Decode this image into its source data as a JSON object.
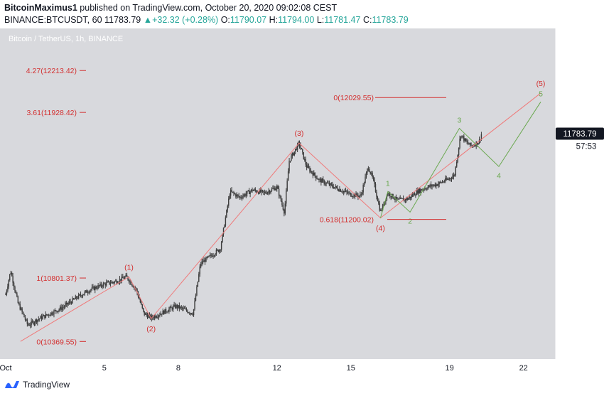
{
  "header": {
    "author": "BitcoinMaximus1",
    "published": "published on TradingView.com, October 20, 2020 09:02:08 CEST",
    "symbol": "BINANCE:BTCUSDT, 60",
    "last": "11783.79",
    "change_arrow": "▲",
    "change": "+32.32 (+0.28%)",
    "o_label": "O:",
    "o_value": "11790.07",
    "h_label": "H:",
    "h_value": "11794.00",
    "l_label": "L:",
    "l_value": "11781.47",
    "c_label": "C:",
    "c_value": "11783.79"
  },
  "footer": {
    "brand": "TradingView",
    "logo_icon": "tradingview-logo-icon"
  },
  "colors": {
    "plot_bg": "#d8d9dd",
    "candle": "#3c3c3c",
    "fib": "#d32f2f",
    "wave_red": "#ef7b7b",
    "wave_green": "#6aa84f",
    "last_price_bg": "#131722"
  },
  "chart_data": {
    "type": "candlestick",
    "title": "Bitcoin / TetherUS, 1h, BINANCE",
    "y_unit": "USDT",
    "ylim": [
      10250,
      12500
    ],
    "y_ticks": [
      "10400.00",
      "10600.00",
      "10800.00",
      "11000.00",
      "11200.00",
      "11400.00",
      "11600.00",
      "11800.00",
      "12000.00",
      "12200.00"
    ],
    "x_ticks": [
      {
        "label": "Oct",
        "day": 1
      },
      {
        "label": "5",
        "day": 5
      },
      {
        "label": "8",
        "day": 8
      },
      {
        "label": "12",
        "day": 12
      },
      {
        "label": "15",
        "day": 15
      },
      {
        "label": "19",
        "day": 19
      },
      {
        "label": "22",
        "day": 22
      }
    ],
    "x_range_days": [
      1,
      23
    ],
    "last_price": "11783.79",
    "countdown": "57:53",
    "price_anchors": [
      [
        1.0,
        10690
      ],
      [
        1.2,
        10850
      ],
      [
        1.5,
        10630
      ],
      [
        1.9,
        10480
      ],
      [
        2.3,
        10520
      ],
      [
        2.8,
        10560
      ],
      [
        3.3,
        10600
      ],
      [
        3.9,
        10670
      ],
      [
        4.4,
        10720
      ],
      [
        5.0,
        10760
      ],
      [
        5.5,
        10780
      ],
      [
        5.9,
        10810
      ],
      [
        6.3,
        10720
      ],
      [
        6.6,
        10560
      ],
      [
        6.9,
        10530
      ],
      [
        7.4,
        10570
      ],
      [
        7.9,
        10610
      ],
      [
        8.2,
        10590
      ],
      [
        8.6,
        10560
      ],
      [
        8.9,
        10900
      ],
      [
        9.3,
        10950
      ],
      [
        9.7,
        11000
      ],
      [
        10.1,
        11390
      ],
      [
        10.5,
        11350
      ],
      [
        11.0,
        11400
      ],
      [
        11.5,
        11380
      ],
      [
        12.0,
        11420
      ],
      [
        12.3,
        11250
      ],
      [
        12.5,
        11600
      ],
      [
        12.9,
        11720
      ],
      [
        13.2,
        11560
      ],
      [
        13.7,
        11470
      ],
      [
        14.2,
        11430
      ],
      [
        14.6,
        11400
      ],
      [
        15.0,
        11370
      ],
      [
        15.4,
        11360
      ],
      [
        15.7,
        11560
      ],
      [
        15.9,
        11470
      ],
      [
        16.2,
        11250
      ],
      [
        16.5,
        11380
      ],
      [
        16.9,
        11330
      ],
      [
        17.3,
        11340
      ],
      [
        17.7,
        11390
      ],
      [
        18.1,
        11420
      ],
      [
        18.5,
        11440
      ],
      [
        18.9,
        11470
      ],
      [
        19.2,
        11500
      ],
      [
        19.45,
        11780
      ],
      [
        19.7,
        11720
      ],
      [
        19.9,
        11700
      ],
      [
        20.2,
        11730
      ],
      [
        20.3,
        11784
      ]
    ],
    "fib_levels": [
      {
        "label": "4.27(12213.42)",
        "price": 12213.42,
        "side": "left"
      },
      {
        "label": "3.61(11928.42)",
        "price": 11928.42,
        "side": "left"
      },
      {
        "label": "1(10801.37)",
        "price": 10801.37,
        "side": "left"
      },
      {
        "label": "0(10369.55)",
        "price": 10369.55,
        "side": "left"
      },
      {
        "label": "0(12029.55)",
        "price": 12029.55,
        "side": "right"
      },
      {
        "label": "0.618(11200.02)",
        "price": 11200.02,
        "side": "right"
      }
    ],
    "major_waves": [
      {
        "label": "(1)",
        "day": 6.0,
        "price": 10810,
        "pos": "above"
      },
      {
        "label": "(2)",
        "day": 6.9,
        "price": 10525,
        "pos": "below"
      },
      {
        "label": "(3)",
        "day": 12.9,
        "price": 11720,
        "pos": "above"
      },
      {
        "label": "(4)",
        "day": 16.2,
        "price": 11210,
        "pos": "below"
      },
      {
        "label": "(5)",
        "day": 22.7,
        "price": 12060,
        "pos": "above"
      }
    ],
    "major_path": [
      [
        1.6,
        10370
      ],
      [
        6.0,
        10810
      ],
      [
        6.9,
        10525
      ],
      [
        12.9,
        11720
      ],
      [
        16.2,
        11210
      ],
      [
        22.7,
        12060
      ]
    ],
    "minor_waves": [
      {
        "label": "1",
        "day": 16.5,
        "price": 11390,
        "pos": "above"
      },
      {
        "label": "2",
        "day": 17.4,
        "price": 11250,
        "pos": "below"
      },
      {
        "label": "3",
        "day": 19.4,
        "price": 11820,
        "pos": "above"
      },
      {
        "label": "4",
        "day": 21.0,
        "price": 11560,
        "pos": "below"
      },
      {
        "label": "5",
        "day": 22.7,
        "price": 12000,
        "pos": "above"
      }
    ],
    "minor_path": [
      [
        16.2,
        11210
      ],
      [
        16.5,
        11390
      ],
      [
        17.4,
        11250
      ],
      [
        19.4,
        11820
      ],
      [
        21.0,
        11560
      ],
      [
        22.7,
        12000
      ]
    ]
  }
}
